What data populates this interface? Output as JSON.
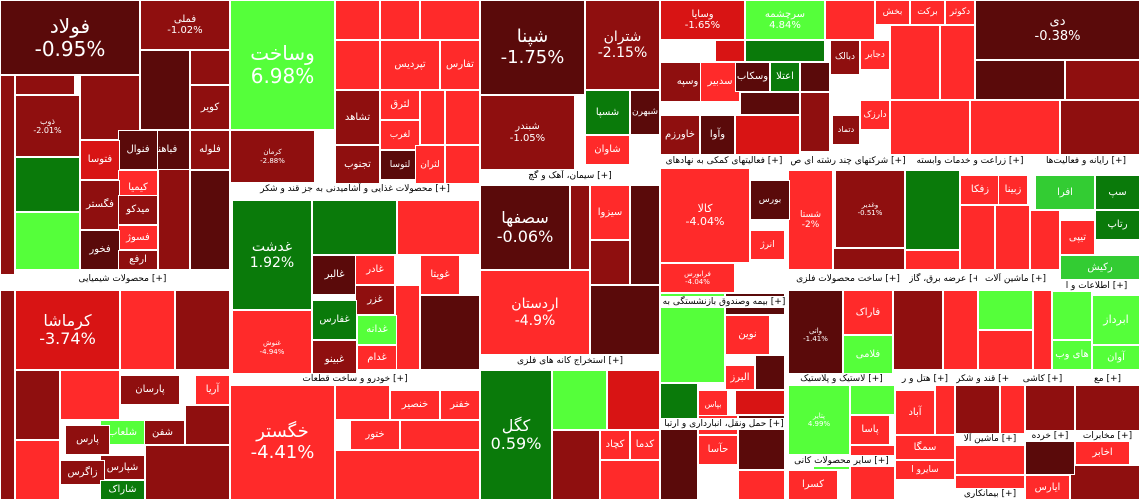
{
  "chart_data": {
    "type": "heatmap",
    "title": "",
    "colors": {
      "deep_green": "#0a7a0a",
      "green": "#33cc33",
      "bright_green": "#55ff3a",
      "maroon": "#5a0a0a",
      "dark_red": "#8f0f0f",
      "red": "#d81414",
      "bright_red": "#ff2a2a",
      "header_bg": "#ffffff",
      "header_text": "#000000"
    },
    "sectors": [
      {
        "name": "محصولات شیمیایی [+]"
      },
      {
        "name": "محصولات غذایی و آشامیدنی به جز قند و شکر [+]"
      },
      {
        "name": "خودرو و ساخت قطعات [+]"
      },
      {
        "name": "سیمان، آهک و گچ [+]"
      },
      {
        "name": "استخراج کانه های فلزی [+]"
      },
      {
        "name": "فعالیتهای کمکی به نهادهای [+]"
      },
      {
        "name": "بیمه وصندوق بازنشستگی به [+]"
      },
      {
        "name": "حمل ونقل، انبارداری و ارتبا [+]"
      },
      {
        "name": "شرکتهای چند رشته ای ص [+]"
      },
      {
        "name": "ساخت محصولات فلزی [+]"
      },
      {
        "name": "لاستیک و پلاستیک [+]"
      },
      {
        "name": "سایر محصولات کانی [+]"
      },
      {
        "name": "زراعت و خدمات وابسته [+]"
      },
      {
        "name": "عرضه برق، گاز [+]"
      },
      {
        "name": "ماشین آلات [+]"
      },
      {
        "name": "هتل و ر [+]"
      },
      {
        "name": "قند و شکر [+]"
      },
      {
        "name": "ماشین آلا [+]"
      },
      {
        "name": "کاشی [+]"
      },
      {
        "name": "خرده [+]"
      },
      {
        "name": "مخابرات [+]"
      },
      {
        "name": "رایانه و فعالیت‌ها [+]"
      },
      {
        "name": "اطلاعات و ا [+]"
      },
      {
        "name": "بیمانکاری [+]"
      },
      {
        "name": "مع [+]"
      }
    ],
    "tiles": [
      {
        "symbol": "فولاد",
        "change": "-0.95%",
        "value": -0.95
      },
      {
        "symbol": "فملی",
        "change": "-1.02%",
        "value": -1.02
      },
      {
        "symbol": "وساخت",
        "change": "6.98%",
        "value": 6.98
      },
      {
        "symbol": "شپنا",
        "change": "-1.75%",
        "value": -1.75
      },
      {
        "symbol": "شتران",
        "change": "-2.15%",
        "value": -2.15
      },
      {
        "symbol": "وسایا",
        "change": "-1.65%",
        "value": -1.65
      },
      {
        "symbol": "سرچشمه",
        "change": "4.84%",
        "value": 4.84
      },
      {
        "symbol": "دی",
        "change": "-0.38%",
        "value": -0.38
      },
      {
        "symbol": "ذوب",
        "change": "-2.01%",
        "value": -2.01
      },
      {
        "symbol": "کرماشا",
        "change": "-3.74%",
        "value": -3.74
      },
      {
        "symbol": "غدشت",
        "change": "1.92%",
        "value": 1.92
      },
      {
        "symbol": "سصفها",
        "change": "-0.06%",
        "value": -0.06
      },
      {
        "symbol": "شبندر",
        "change": "-1.05%",
        "value": -1.05
      },
      {
        "symbol": "اردستان",
        "change": "-4.9%",
        "value": -4.9
      },
      {
        "symbol": "کگل",
        "change": "0.59%",
        "value": 0.59
      },
      {
        "symbol": "خگستر",
        "change": "-4.41%",
        "value": -4.41
      },
      {
        "symbol": "کالا",
        "change": "-4.04%",
        "value": -4.04
      },
      {
        "symbol": "شستا",
        "change": "-2%",
        "value": -2
      },
      {
        "symbol": "کرمان",
        "change": "-2.88%",
        "value": -2.88
      },
      {
        "symbol": "فرابورس",
        "change": "-4.04%",
        "value": -4.04
      },
      {
        "symbol": "غنوش",
        "change": "-4.94%",
        "value": -4.94
      },
      {
        "symbol": "پتاير",
        "change": "4.99%",
        "value": 4.99
      },
      {
        "symbol": "وغدیر",
        "change": "-0.51%",
        "value": -0.51
      },
      {
        "symbol": "واتی",
        "change": "-1.41%",
        "value": -1.41
      },
      {
        "symbol": "وسپه",
        "change": "",
        "value": -1
      },
      {
        "symbol": "سدبیر",
        "change": "",
        "value": -1
      },
      {
        "symbol": "وسکاب",
        "change": "",
        "value": -1
      },
      {
        "symbol": "اعتلا",
        "change": "",
        "value": 3
      },
      {
        "symbol": "دبالک",
        "change": "",
        "value": -1
      },
      {
        "symbol": "بخش",
        "change": "",
        "value": -1
      },
      {
        "symbol": "برکت",
        "change": "",
        "value": -1
      },
      {
        "symbol": "دکوثر",
        "change": "",
        "value": -1
      },
      {
        "symbol": "دجابر",
        "change": "",
        "value": -1
      },
      {
        "symbol": "دارزک",
        "change": "",
        "value": -1
      },
      {
        "symbol": "دتماد",
        "change": "",
        "value": -1
      },
      {
        "symbol": "وآوا",
        "change": "",
        "value": -1
      },
      {
        "symbol": "خاورزم",
        "change": "",
        "value": -1
      },
      {
        "symbol": "شسپا",
        "change": "",
        "value": 2
      },
      {
        "symbol": "شاوان",
        "change": "",
        "value": -1
      },
      {
        "symbol": "شبهرن",
        "change": "",
        "value": -1
      },
      {
        "symbol": "تپردیس",
        "change": "",
        "value": -1
      },
      {
        "symbol": "تفارس",
        "change": "",
        "value": -1
      },
      {
        "symbol": "لثرق",
        "change": "",
        "value": -1
      },
      {
        "symbol": "تشاهد",
        "change": "",
        "value": -1
      },
      {
        "symbol": "کویر",
        "change": "",
        "value": -1
      },
      {
        "symbol": "فلوله",
        "change": "",
        "value": -1
      },
      {
        "symbol": "فباهنر",
        "change": "",
        "value": -1
      },
      {
        "symbol": "فنوال",
        "change": "",
        "value": -1
      },
      {
        "symbol": "فتوسا",
        "change": "",
        "value": -1
      },
      {
        "symbol": "کیمیا",
        "change": "",
        "value": -1
      },
      {
        "symbol": "فگستر",
        "change": "",
        "value": -1
      },
      {
        "symbol": "میدکو",
        "change": "",
        "value": -1
      },
      {
        "symbol": "فسوژ",
        "change": "",
        "value": -1
      },
      {
        "symbol": "فخور",
        "change": "",
        "value": -1
      },
      {
        "symbol": "ارفع",
        "change": "",
        "value": -1
      },
      {
        "symbol": "تجنوب",
        "change": "",
        "value": -1
      },
      {
        "symbol": "لغرب",
        "change": "",
        "value": -1
      },
      {
        "symbol": "لتوسا",
        "change": "",
        "value": -1
      },
      {
        "symbol": "لثران",
        "change": "",
        "value": -1
      },
      {
        "symbol": "سیزوا",
        "change": "",
        "value": -1
      },
      {
        "symbol": "بورس",
        "change": "",
        "value": -1
      },
      {
        "symbol": "انرژ",
        "change": "",
        "value": -1
      },
      {
        "symbol": "غالبر",
        "change": "",
        "value": -1
      },
      {
        "symbol": "غادر",
        "change": "",
        "value": -1
      },
      {
        "symbol": "غزر",
        "change": "",
        "value": -1
      },
      {
        "symbol": "غفارس",
        "change": "",
        "value": -1
      },
      {
        "symbol": "غدانه",
        "change": "",
        "value": -1
      },
      {
        "symbol": "غبینو",
        "change": "",
        "value": -1
      },
      {
        "symbol": "غدام",
        "change": "",
        "value": -1
      },
      {
        "symbol": "غویتا",
        "change": "",
        "value": -1
      },
      {
        "symbol": "فاراک",
        "change": "",
        "value": 3
      },
      {
        "symbol": "فلامی",
        "change": "",
        "value": 3
      },
      {
        "symbol": "ابرداز",
        "change": "",
        "value": 2
      },
      {
        "symbol": "های وب",
        "change": "",
        "value": 3
      },
      {
        "symbol": "آوان",
        "change": "",
        "value": 2
      },
      {
        "symbol": "زفکا",
        "change": "",
        "value": -1
      },
      {
        "symbol": "زبینا",
        "change": "",
        "value": -1
      },
      {
        "symbol": "افرا",
        "change": "",
        "value": 2
      },
      {
        "symbol": "سپ",
        "change": "",
        "value": 1
      },
      {
        "symbol": "رتاپ",
        "change": "",
        "value": 1
      },
      {
        "symbol": "تیپی",
        "change": "",
        "value": -1
      },
      {
        "symbol": "رکیش",
        "change": "",
        "value": 2
      },
      {
        "symbol": "پارسان",
        "change": "",
        "value": -1
      },
      {
        "symbol": "آریا",
        "change": "",
        "value": -1
      },
      {
        "symbol": "شفن",
        "change": "",
        "value": -1
      },
      {
        "symbol": "شلعاب",
        "change": "",
        "value": 2
      },
      {
        "symbol": "پارس",
        "change": "",
        "value": -1
      },
      {
        "symbol": "شپارس",
        "change": "",
        "value": -1
      },
      {
        "symbol": "زاگرس",
        "change": "",
        "value": -1
      },
      {
        "symbol": "شاراک",
        "change": "",
        "value": -1
      },
      {
        "symbol": "خنصیر",
        "change": "",
        "value": -1
      },
      {
        "symbol": "ختور",
        "change": "",
        "value": -1
      },
      {
        "symbol": "خفنر",
        "change": "",
        "value": -1
      },
      {
        "symbol": "نوین",
        "change": "",
        "value": -1
      },
      {
        "symbol": "البرز",
        "change": "",
        "value": -1
      },
      {
        "symbol": "بپاس",
        "change": "",
        "value": -1
      },
      {
        "symbol": "حتوکا",
        "change": "",
        "value": -1
      },
      {
        "symbol": "کچاد",
        "change": "",
        "value": -1
      },
      {
        "symbol": "کدما",
        "change": "",
        "value": -1
      },
      {
        "symbol": "حآسا",
        "change": "",
        "value": -1
      },
      {
        "symbol": "کسرا",
        "change": "",
        "value": -1
      },
      {
        "symbol": "پاسا",
        "change": "",
        "value": -1
      },
      {
        "symbol": "آباد",
        "change": "",
        "value": 2
      },
      {
        "symbol": "سمگا",
        "change": "",
        "value": -1
      },
      {
        "symbol": "سایرو ا",
        "change": "",
        "value": -1
      },
      {
        "symbol": "اخابر",
        "change": "",
        "value": -1
      },
      {
        "symbol": "ایارس",
        "change": "",
        "value": -1
      }
    ]
  }
}
